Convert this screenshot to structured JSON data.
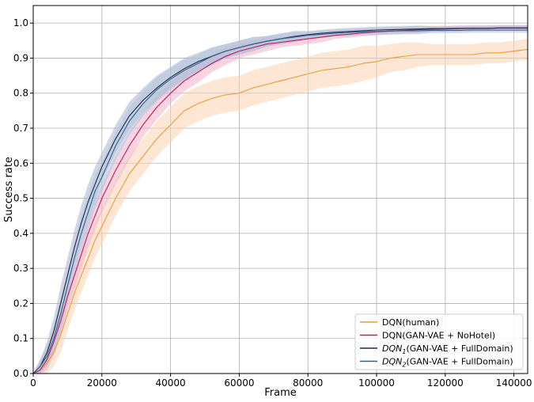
{
  "chart_data": {
    "type": "line",
    "xlabel": "Frame",
    "ylabel": "Success rate",
    "xlim": [
      0,
      144000
    ],
    "ylim": [
      0.0,
      1.05
    ],
    "grid": true,
    "legend_position": "bottom-right",
    "x_ticks": [
      0,
      20000,
      40000,
      60000,
      80000,
      100000,
      120000,
      140000
    ],
    "y_ticks": [
      0.0,
      0.1,
      0.2,
      0.3,
      0.4,
      0.5,
      0.6,
      0.7,
      0.8,
      0.9,
      1.0
    ],
    "x_tick_labels": [
      "0",
      "20000",
      "40000",
      "60000",
      "80000",
      "100000",
      "120000",
      "140000"
    ],
    "y_tick_labels": [
      "0.0",
      "0.1",
      "0.2",
      "0.3",
      "0.4",
      "0.5",
      "0.6",
      "0.7",
      "0.8",
      "0.9",
      "1.0"
    ],
    "x": [
      0,
      2000,
      4000,
      6000,
      8000,
      10000,
      12000,
      14000,
      16000,
      18000,
      20000,
      24000,
      28000,
      32000,
      36000,
      40000,
      44000,
      48000,
      52000,
      56000,
      60000,
      64000,
      68000,
      72000,
      76000,
      80000,
      84000,
      88000,
      92000,
      96000,
      100000,
      104000,
      108000,
      112000,
      116000,
      120000,
      124000,
      128000,
      132000,
      136000,
      140000,
      144000
    ],
    "series": [
      {
        "name": "DQN(human)",
        "color": "#ee9a3a",
        "band_color": "#fbd3b0",
        "values": [
          0.0,
          0.01,
          0.03,
          0.06,
          0.11,
          0.17,
          0.23,
          0.28,
          0.33,
          0.38,
          0.42,
          0.5,
          0.57,
          0.62,
          0.67,
          0.71,
          0.75,
          0.77,
          0.785,
          0.795,
          0.8,
          0.815,
          0.825,
          0.835,
          0.845,
          0.855,
          0.865,
          0.87,
          0.875,
          0.885,
          0.89,
          0.9,
          0.905,
          0.91,
          0.91,
          0.91,
          0.91,
          0.91,
          0.915,
          0.915,
          0.92,
          0.925
        ],
        "spread": [
          0.0,
          0.02,
          0.03,
          0.04,
          0.05,
          0.05,
          0.05,
          0.05,
          0.05,
          0.05,
          0.05,
          0.05,
          0.05,
          0.05,
          0.05,
          0.05,
          0.05,
          0.05,
          0.05,
          0.05,
          0.05,
          0.05,
          0.05,
          0.05,
          0.05,
          0.05,
          0.05,
          0.05,
          0.05,
          0.05,
          0.045,
          0.04,
          0.04,
          0.035,
          0.03,
          0.03,
          0.03,
          0.03,
          0.03,
          0.03,
          0.03,
          0.03
        ]
      },
      {
        "name": "DQN(GAN-VAE + NoHotel)",
        "color": "#c2185b",
        "band_color": "#f2aec6",
        "values": [
          0.0,
          0.01,
          0.04,
          0.09,
          0.15,
          0.22,
          0.28,
          0.34,
          0.4,
          0.45,
          0.5,
          0.58,
          0.65,
          0.71,
          0.76,
          0.8,
          0.835,
          0.86,
          0.885,
          0.905,
          0.92,
          0.93,
          0.94,
          0.945,
          0.95,
          0.955,
          0.96,
          0.965,
          0.968,
          0.972,
          0.975,
          0.977,
          0.979,
          0.981,
          0.982,
          0.983,
          0.984,
          0.985,
          0.985,
          0.986,
          0.986,
          0.986
        ],
        "spread": [
          0.0,
          0.02,
          0.03,
          0.04,
          0.04,
          0.04,
          0.04,
          0.04,
          0.04,
          0.04,
          0.04,
          0.04,
          0.04,
          0.035,
          0.035,
          0.03,
          0.03,
          0.03,
          0.025,
          0.025,
          0.02,
          0.02,
          0.02,
          0.015,
          0.015,
          0.015,
          0.015,
          0.01,
          0.01,
          0.01,
          0.01,
          0.01,
          0.01,
          0.01,
          0.008,
          0.008,
          0.008,
          0.008,
          0.008,
          0.008,
          0.008,
          0.008
        ]
      },
      {
        "name": "DQN₁(GAN-VAE + FullDomain)",
        "label_base": "DQN",
        "label_sub": "1",
        "label_rest": "(GAN-VAE + FullDomain)",
        "color": "#1a2a4a",
        "band_color": "#a9b4d0",
        "values": [
          0.0,
          0.02,
          0.06,
          0.12,
          0.2,
          0.28,
          0.36,
          0.43,
          0.49,
          0.54,
          0.59,
          0.67,
          0.735,
          0.78,
          0.815,
          0.845,
          0.87,
          0.89,
          0.905,
          0.92,
          0.93,
          0.94,
          0.948,
          0.955,
          0.962,
          0.967,
          0.971,
          0.974,
          0.976,
          0.978,
          0.98,
          0.981,
          0.982,
          0.983,
          0.984,
          0.984,
          0.985,
          0.985,
          0.985,
          0.986,
          0.986,
          0.986
        ],
        "spread": [
          0.0,
          0.02,
          0.03,
          0.04,
          0.05,
          0.05,
          0.05,
          0.05,
          0.05,
          0.05,
          0.04,
          0.04,
          0.04,
          0.035,
          0.035,
          0.03,
          0.03,
          0.025,
          0.025,
          0.02,
          0.02,
          0.02,
          0.015,
          0.015,
          0.015,
          0.01,
          0.01,
          0.01,
          0.01,
          0.01,
          0.01,
          0.01,
          0.01,
          0.01,
          0.008,
          0.008,
          0.008,
          0.008,
          0.008,
          0.008,
          0.008,
          0.008
        ]
      },
      {
        "name": "DQN₂(GAN-VAE + FullDomain)",
        "label_base": "DQN",
        "label_sub": "2",
        "label_rest": "(GAN-VAE + FullDomain)",
        "color": "#3a5f8a",
        "band_color": "#b3c4dc",
        "values": [
          0.0,
          0.02,
          0.05,
          0.1,
          0.17,
          0.25,
          0.33,
          0.4,
          0.46,
          0.52,
          0.56,
          0.65,
          0.72,
          0.77,
          0.81,
          0.84,
          0.865,
          0.885,
          0.905,
          0.92,
          0.93,
          0.94,
          0.948,
          0.955,
          0.96,
          0.965,
          0.968,
          0.971,
          0.973,
          0.975,
          0.976,
          0.977,
          0.978,
          0.978,
          0.979,
          0.979,
          0.979,
          0.98,
          0.98,
          0.98,
          0.98,
          0.98
        ],
        "spread": [
          0.0,
          0.02,
          0.03,
          0.04,
          0.05,
          0.05,
          0.05,
          0.05,
          0.05,
          0.05,
          0.04,
          0.04,
          0.04,
          0.035,
          0.035,
          0.03,
          0.03,
          0.025,
          0.025,
          0.02,
          0.02,
          0.02,
          0.015,
          0.015,
          0.015,
          0.01,
          0.01,
          0.01,
          0.01,
          0.01,
          0.01,
          0.01,
          0.01,
          0.01,
          0.008,
          0.008,
          0.008,
          0.008,
          0.008,
          0.008,
          0.008,
          0.008
        ]
      }
    ]
  }
}
